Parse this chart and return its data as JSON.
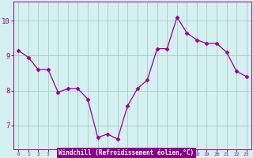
{
  "x": [
    0,
    1,
    2,
    3,
    4,
    5,
    6,
    7,
    8,
    9,
    10,
    11,
    12,
    13,
    14,
    15,
    16,
    17,
    18,
    19,
    20,
    21,
    22,
    23
  ],
  "y": [
    9.15,
    8.95,
    8.6,
    8.6,
    7.95,
    8.05,
    8.05,
    7.75,
    6.65,
    6.75,
    6.6,
    7.55,
    8.05,
    8.3,
    9.2,
    9.2,
    10.1,
    9.65,
    9.45,
    9.35,
    9.35,
    9.1,
    8.55,
    8.4
  ],
  "line_color": "#990099",
  "marker": "D",
  "marker_size": 2.5,
  "bg_color": "#d4f0f0",
  "grid_color": "#aacccc",
  "xlabel": "Windchill (Refroidissement éolien,°C)",
  "xlabel_bg": "#880088",
  "yticks": [
    7,
    8,
    9,
    10
  ],
  "xticks": [
    0,
    1,
    2,
    3,
    4,
    5,
    6,
    7,
    8,
    9,
    10,
    11,
    12,
    13,
    14,
    15,
    16,
    17,
    18,
    19,
    20,
    21,
    22,
    23
  ],
  "ylim": [
    6.3,
    10.55
  ],
  "xlim": [
    -0.5,
    23.5
  ]
}
